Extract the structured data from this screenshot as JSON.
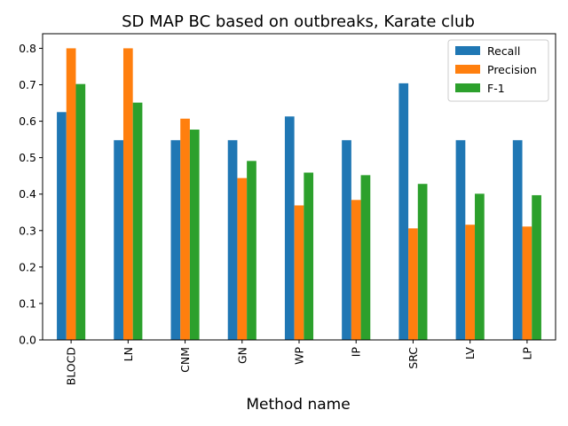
{
  "chart_data": {
    "type": "bar",
    "title": "SD MAP BC based on outbreaks, Karate club",
    "xlabel": "Method name",
    "ylabel": "",
    "ylim": [
      0,
      0.84
    ],
    "yticks": [
      0.0,
      0.1,
      0.2,
      0.3,
      0.4,
      0.5,
      0.6,
      0.7,
      0.8
    ],
    "ytick_labels": [
      "0.0",
      "0.1",
      "0.2",
      "0.3",
      "0.4",
      "0.5",
      "0.6",
      "0.7",
      "0.8"
    ],
    "categories": [
      "BLOCD",
      "LN",
      "CNM",
      "GN",
      "WP",
      "IP",
      "SRC",
      "LV",
      "LP"
    ],
    "series": [
      {
        "name": "Recall",
        "color": "#1f77b4",
        "values": [
          0.625,
          0.548,
          0.548,
          0.548,
          0.613,
          0.548,
          0.704,
          0.548,
          0.548
        ]
      },
      {
        "name": "Precision",
        "color": "#ff7f0e",
        "values": [
          0.8,
          0.8,
          0.607,
          0.444,
          0.369,
          0.384,
          0.306,
          0.316,
          0.311
        ]
      },
      {
        "name": "F-1",
        "color": "#2ca02c",
        "values": [
          0.702,
          0.651,
          0.577,
          0.491,
          0.459,
          0.452,
          0.428,
          0.401,
          0.397
        ]
      }
    ],
    "legend_position": "top-right",
    "grid": false
  }
}
